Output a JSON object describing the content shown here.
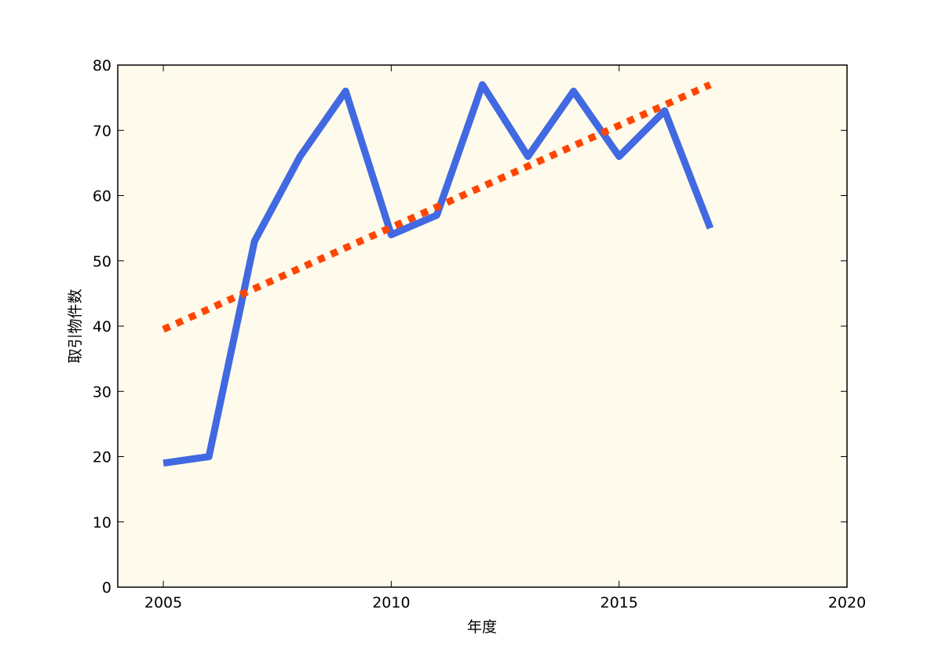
{
  "chart_data": {
    "type": "line",
    "xlabel": "年度",
    "ylabel": "取引物件数",
    "xlim": [
      2004,
      2020
    ],
    "xticks": [
      2005,
      2010,
      2015,
      2020
    ],
    "ylim": [
      0,
      80
    ],
    "yticks": [
      0,
      10,
      20,
      30,
      40,
      50,
      60,
      70,
      80
    ],
    "background": "#fefaec",
    "series": [
      {
        "color": "#4169e1",
        "style": "solid",
        "x": [
          2005,
          2006,
          2007,
          2008,
          2009,
          2010,
          2011,
          2012,
          2013,
          2014,
          2015,
          2016,
          2017
        ],
        "values": [
          19,
          20,
          53,
          66,
          76,
          54,
          57,
          77,
          66,
          76,
          66,
          73,
          55
        ]
      },
      {
        "color": "#ff4500",
        "style": "dotted",
        "x": [
          2005,
          2017
        ],
        "values": [
          39.5,
          77
        ]
      }
    ]
  }
}
